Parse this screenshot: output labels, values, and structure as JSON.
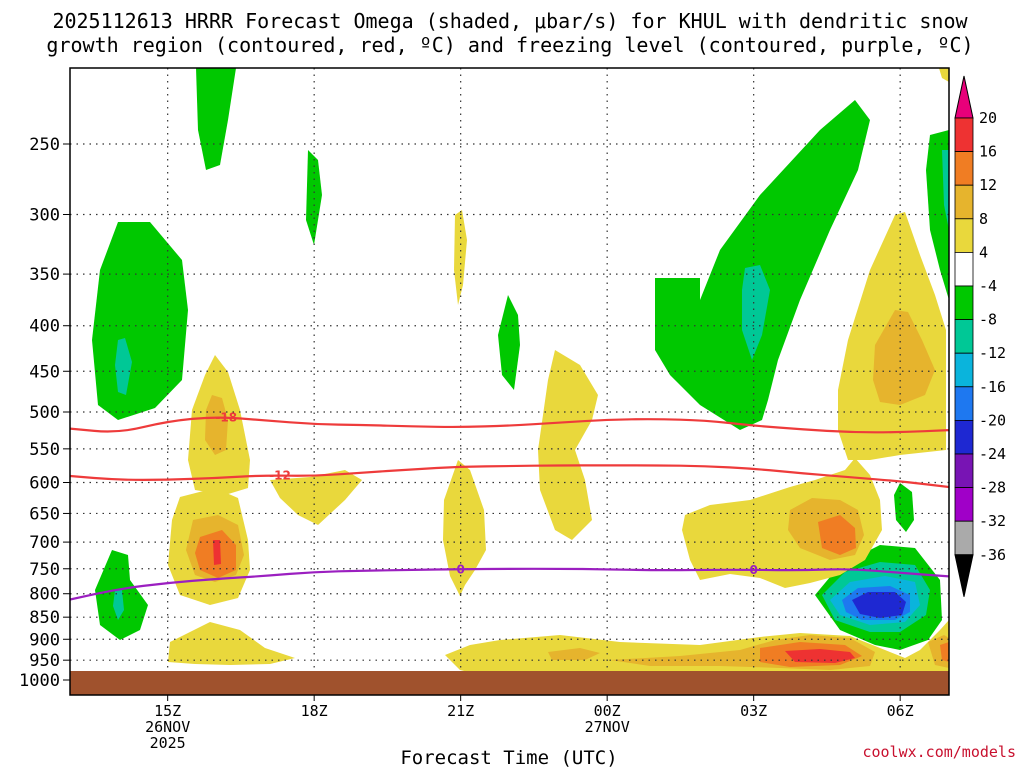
{
  "chart_data": {
    "type": "heatmap",
    "title_line1": "2025112613 HRRR Forecast Omega (shaded, μbar/s) for KHUL with dendritic snow",
    "title_line2": "growth region (contoured, red, ºC) and freezing level (contoured, purple, ºC)",
    "xlabel": "Forecast Time (UTC)",
    "ylabel": "Pressure (hPa)",
    "y_ticks": [
      250,
      300,
      350,
      400,
      450,
      500,
      550,
      600,
      650,
      700,
      750,
      800,
      850,
      900,
      950,
      1000
    ],
    "y_labels": [
      "250",
      "300",
      "350",
      "400",
      "450",
      "500",
      "550",
      "600",
      "650",
      "700",
      "750",
      "800",
      "850",
      "900",
      "950",
      "1000"
    ],
    "x_ticks": [
      {
        "hour": 15,
        "line1": "15Z",
        "line2": "26NOV",
        "line3": "2025"
      },
      {
        "hour": 18,
        "line1": "18Z",
        "line2": "",
        "line3": ""
      },
      {
        "hour": 21,
        "line1": "21Z",
        "line2": "",
        "line3": ""
      },
      {
        "hour": 24,
        "line1": "00Z",
        "line2": "27NOV",
        "line3": ""
      },
      {
        "hour": 27,
        "line1": "03Z",
        "line2": "",
        "line3": ""
      },
      {
        "hour": 30,
        "line1": "06Z",
        "line2": "",
        "line3": ""
      }
    ],
    "x_range_hours": [
      13,
      31
    ],
    "grid": true,
    "colorbar": {
      "levels": [
        "20",
        "16",
        "12",
        "8",
        "4",
        "-4",
        "-8",
        "-12",
        "-16",
        "-20",
        "-24",
        "-28",
        "-32",
        "-36"
      ],
      "colors": [
        "#e8007a",
        "#ee3232",
        "#f07d23",
        "#e6b42d",
        "#e9d83c",
        "#ffffff",
        "#00c800",
        "#00c896",
        "#0ab4dc",
        "#1e78f0",
        "#1e28d2",
        "#7814b4",
        "#a000c8",
        "#aaaaaa",
        "#000000"
      ]
    },
    "contours": [
      {
        "name": "dgz-upper",
        "label": "-18",
        "color": "#ee3b3b",
        "hours": [
          13,
          14,
          15,
          16,
          17,
          18,
          19,
          20,
          21,
          22,
          23,
          24,
          25,
          26,
          27,
          28,
          29,
          30,
          31
        ],
        "pressure": [
          522,
          528,
          512,
          506,
          511,
          516,
          517,
          519,
          520,
          518,
          514,
          510,
          509,
          511,
          518,
          523,
          527,
          527,
          524
        ]
      },
      {
        "name": "dgz-lower",
        "label": "-12",
        "color": "#ee3b3b",
        "hours": [
          13,
          14,
          15,
          16,
          17,
          18,
          19,
          20,
          21,
          22,
          23,
          24,
          25,
          26,
          27,
          28,
          29,
          30,
          31
        ],
        "pressure": [
          590,
          596,
          596,
          593,
          589,
          590,
          585,
          580,
          576,
          575,
          574,
          574,
          574,
          575,
          579,
          586,
          592,
          598,
          607
        ]
      },
      {
        "name": "freezing-level",
        "label": "0",
        "color": "#9b1fc0",
        "hours": [
          13,
          14,
          15,
          16,
          17,
          18,
          19,
          20,
          21,
          22,
          23,
          24,
          25,
          26,
          27,
          28,
          29,
          30,
          31
        ],
        "pressure": [
          812,
          790,
          778,
          770,
          764,
          756,
          754,
          752,
          751,
          750,
          750,
          751,
          753,
          752,
          752,
          753,
          750,
          758,
          765
        ]
      }
    ]
  },
  "credit": "coolwx.com/models"
}
